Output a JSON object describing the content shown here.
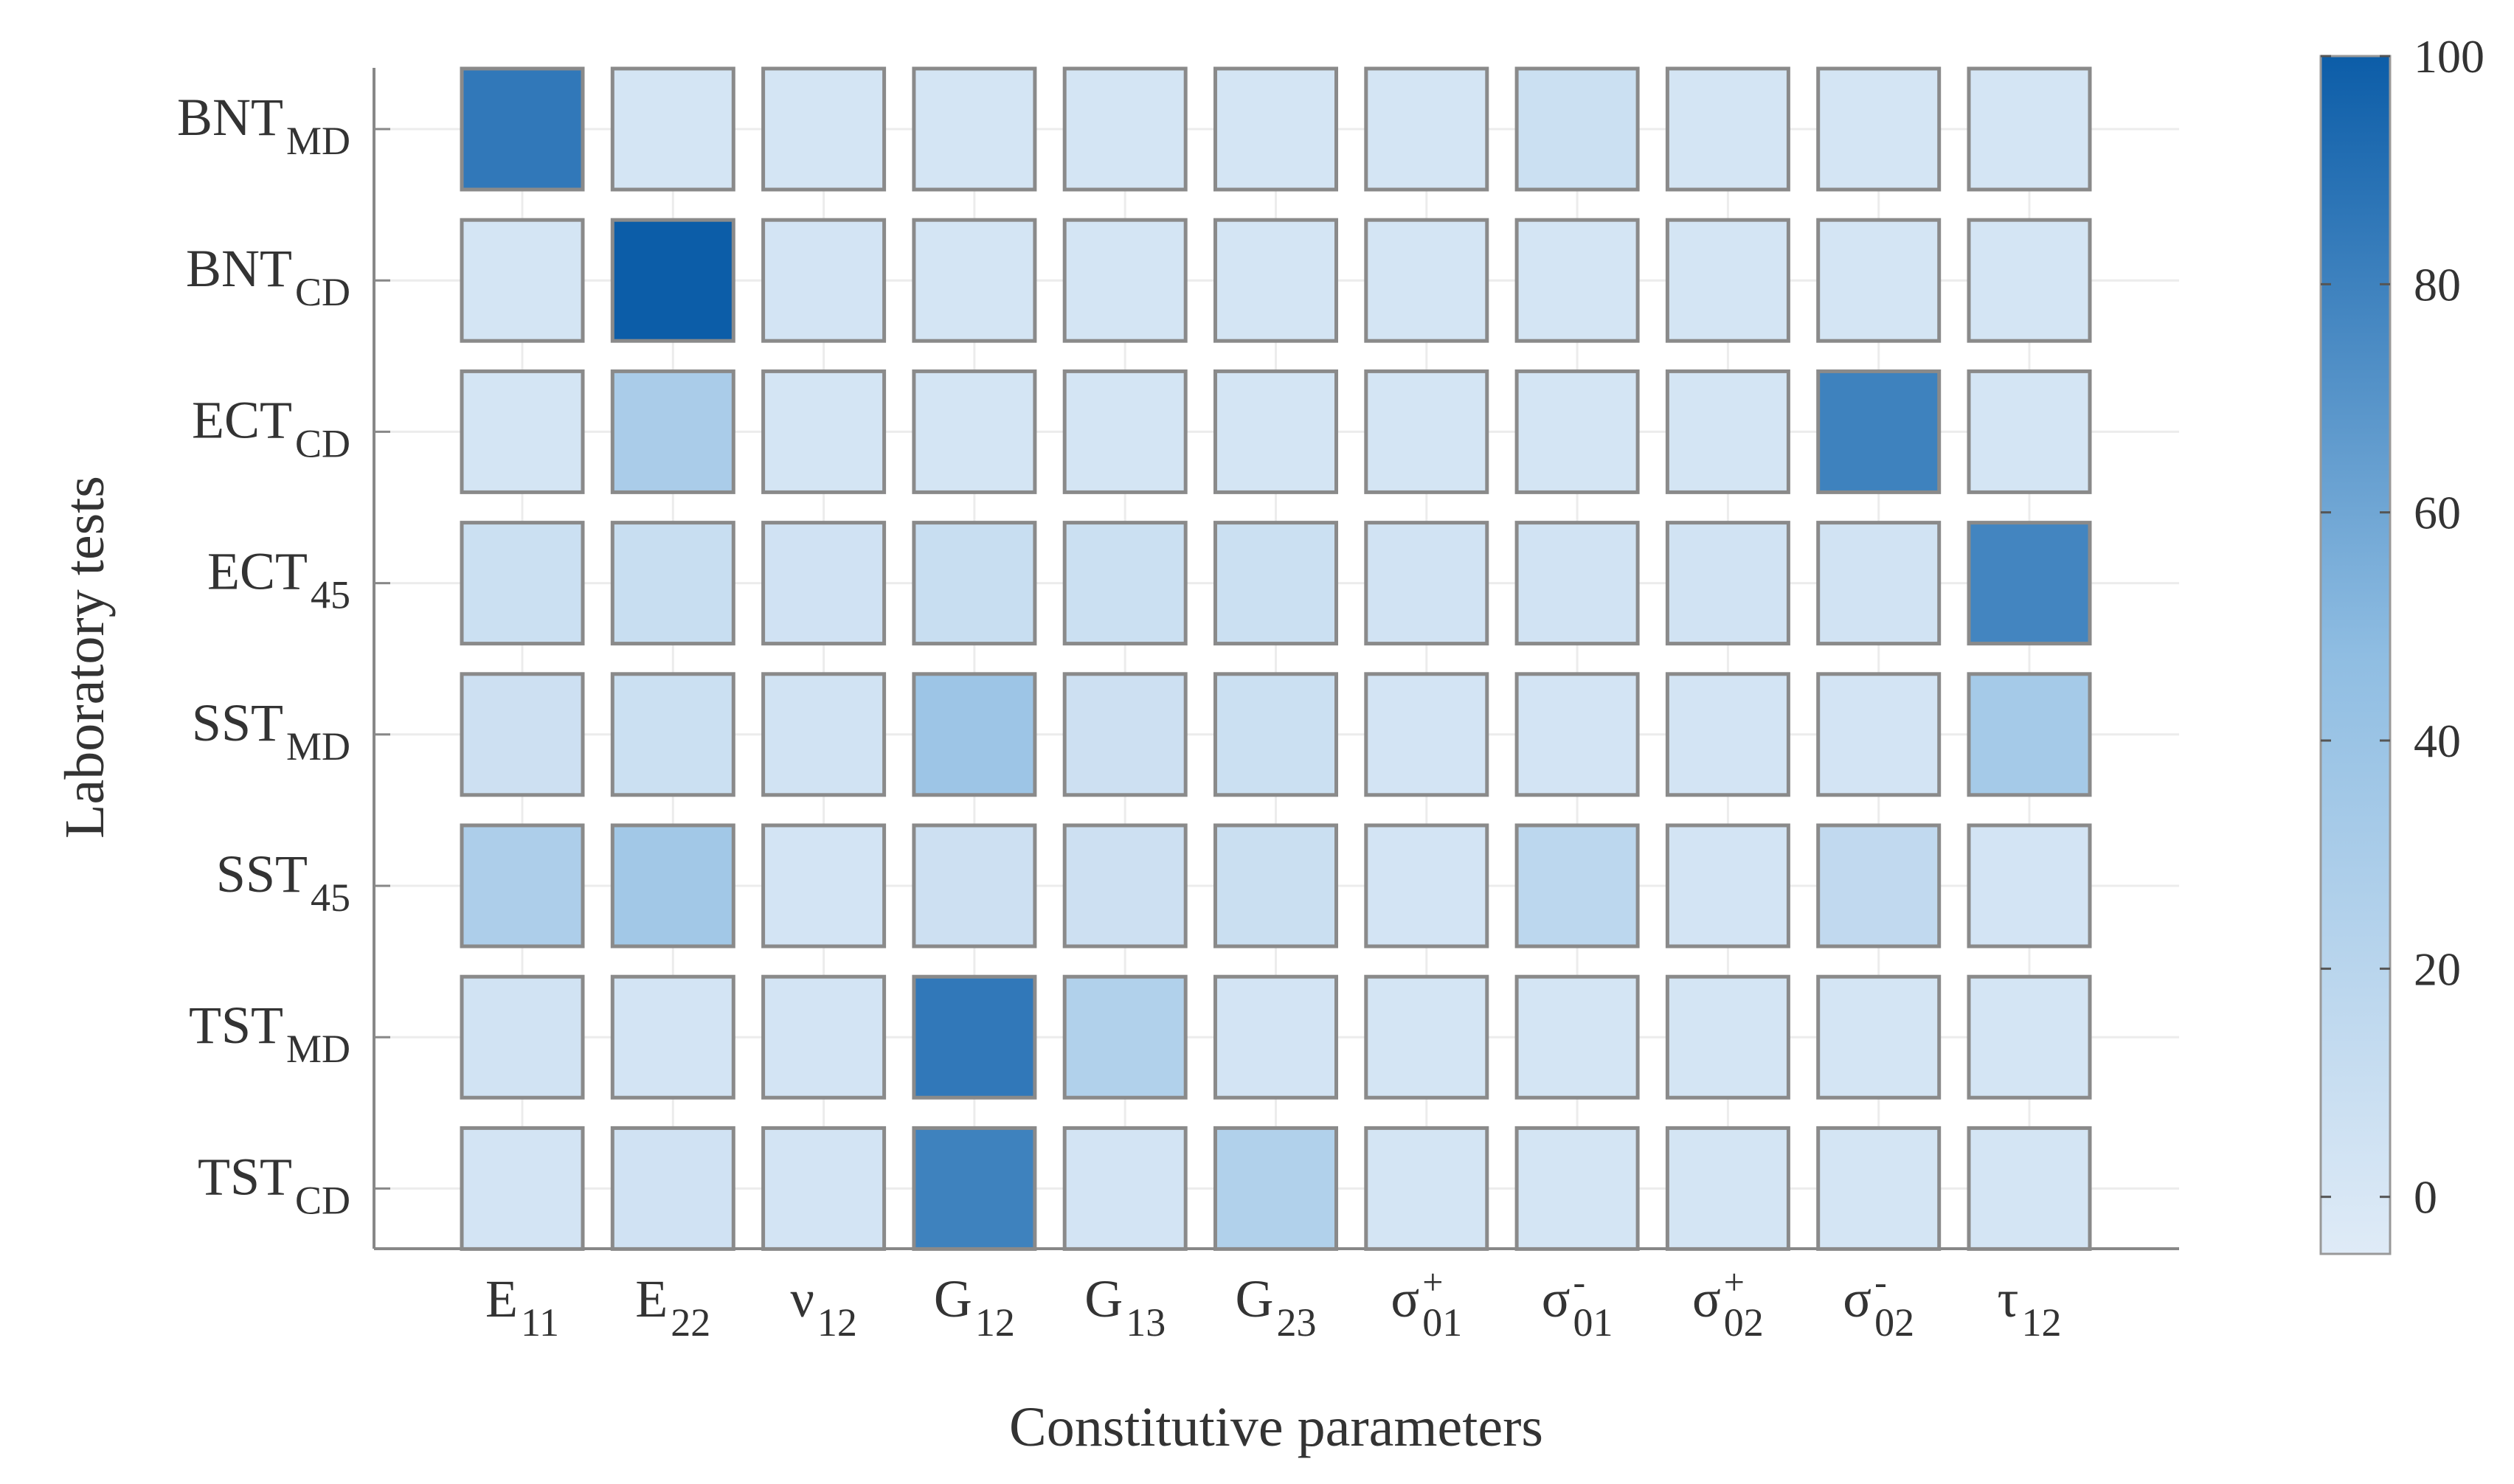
{
  "chart_data": {
    "type": "heatmap",
    "xlabel": "Constitutive parameters",
    "ylabel": "Laboratory tests",
    "x_categories": [
      {
        "base": "E",
        "sub": "11"
      },
      {
        "base": "E",
        "sub": "22"
      },
      {
        "base": "ν",
        "sub": "12"
      },
      {
        "base": "G",
        "sub": "12"
      },
      {
        "base": "G",
        "sub": "13"
      },
      {
        "base": "G",
        "sub": "23"
      },
      {
        "base": "σ",
        "sup": "+",
        "sub": "01"
      },
      {
        "base": "σ",
        "sup": "-",
        "sub": "01"
      },
      {
        "base": "σ",
        "sup": "+",
        "sub": "02"
      },
      {
        "base": "σ",
        "sup": "-",
        "sub": "02"
      },
      {
        "base": "τ",
        "sub": "12"
      }
    ],
    "y_categories": [
      {
        "base": "BNT",
        "sub": "MD"
      },
      {
        "base": "BNT",
        "sub": "CD"
      },
      {
        "base": "ECT",
        "sub": "CD"
      },
      {
        "base": "ECT",
        "sub": "45"
      },
      {
        "base": "SST",
        "sub": "MD"
      },
      {
        "base": "SST",
        "sub": "45"
      },
      {
        "base": "TST",
        "sub": "MD"
      },
      {
        "base": "TST",
        "sub": "CD"
      }
    ],
    "values": [
      [
        85,
        2,
        2,
        2,
        2,
        2,
        2,
        8,
        2,
        2,
        2
      ],
      [
        2,
        100,
        3,
        2,
        2,
        2,
        2,
        2,
        2,
        2,
        2
      ],
      [
        2,
        30,
        2,
        2,
        2,
        2,
        2,
        2,
        2,
        80,
        2
      ],
      [
        8,
        10,
        5,
        10,
        8,
        8,
        4,
        4,
        4,
        4,
        78
      ],
      [
        7,
        8,
        4,
        38,
        7,
        8,
        3,
        3,
        3,
        3,
        33
      ],
      [
        28,
        35,
        3,
        7,
        7,
        9,
        3,
        18,
        3,
        15,
        3
      ],
      [
        4,
        3,
        3,
        85,
        25,
        3,
        2,
        2,
        2,
        2,
        2
      ],
      [
        3,
        5,
        3,
        80,
        3,
        25,
        2,
        2,
        2,
        2,
        2
      ]
    ],
    "zlim": [
      -5,
      100
    ],
    "zticks": [
      0,
      20,
      40,
      60,
      80,
      100
    ],
    "colormap": [
      "#dfebf7",
      "#8fbde2",
      "#0c5da8"
    ],
    "grid": true
  }
}
